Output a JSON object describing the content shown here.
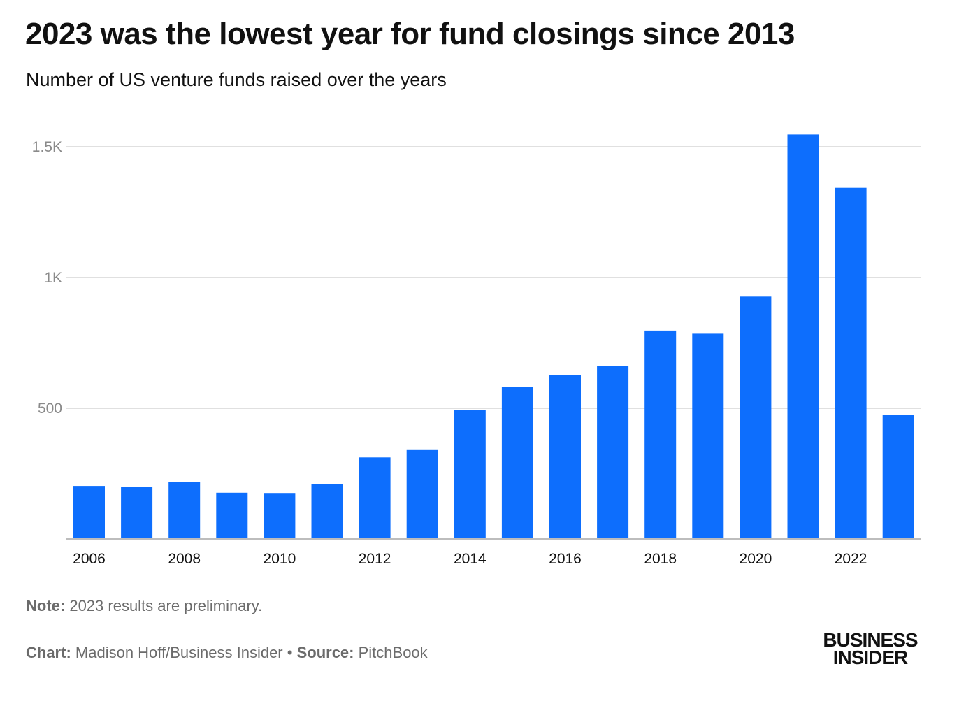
{
  "header": {
    "title": "2023 was the lowest year for fund closings since 2013",
    "subtitle": "Number of US venture funds raised over the years"
  },
  "footer": {
    "note_label": "Note:",
    "note_text": " 2023 results are preliminary.",
    "chart_label": "Chart:",
    "chart_text": " Madison Hoff/Business Insider",
    "separator": " • ",
    "source_label": "Source:",
    "source_text": " PitchBook"
  },
  "logo": {
    "line1": "BUSINESS",
    "line2": "INSIDER"
  },
  "colors": {
    "bar": "#0d6efd",
    "grid": "#d6d6d6",
    "axis": "#bdbdbd",
    "tick_label": "#8a8a8a",
    "x_tick_label": "#111111"
  },
  "chart_data": {
    "type": "bar",
    "title": "2023 was the lowest year for fund closings since 2013",
    "subtitle": "Number of US venture funds raised over the years",
    "categories": [
      "2006",
      "2007",
      "2008",
      "2009",
      "2010",
      "2011",
      "2012",
      "2013",
      "2014",
      "2015",
      "2016",
      "2017",
      "2018",
      "2019",
      "2020",
      "2021",
      "2022",
      "2023"
    ],
    "values": [
      203,
      198,
      217,
      177,
      176,
      209,
      312,
      340,
      493,
      583,
      628,
      663,
      797,
      785,
      927,
      1547,
      1343,
      475
    ],
    "x_tick_labels": [
      "2006",
      "2008",
      "2010",
      "2012",
      "2014",
      "2016",
      "2018",
      "2020",
      "2022"
    ],
    "y_ticks": [
      {
        "value": 500,
        "label": "500"
      },
      {
        "value": 1000,
        "label": "1K"
      },
      {
        "value": 1500,
        "label": "1.5K"
      }
    ],
    "ylim": [
      0,
      1500
    ],
    "xlabel": "",
    "ylabel": "",
    "grid": true,
    "legend": "none"
  }
}
